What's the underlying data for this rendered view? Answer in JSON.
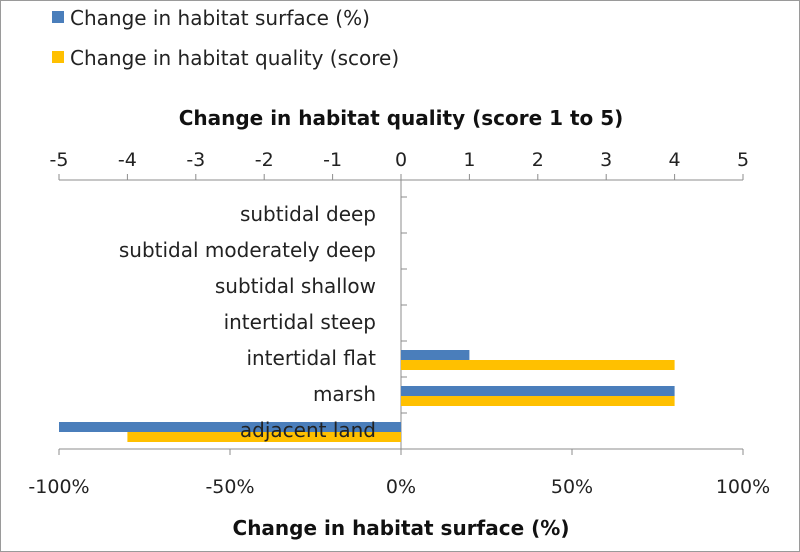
{
  "chart_data": {
    "type": "bar",
    "orientation": "horizontal",
    "categories": [
      "subtidal deep",
      "subtidal moderately deep",
      "subtidal shallow",
      "intertidal steep",
      "intertidal flat",
      "marsh",
      "adjacent land"
    ],
    "series": [
      {
        "name": "Change in habitat surface (%)",
        "axis": "bottom",
        "color": "#4a7ebb",
        "values": [
          0,
          0,
          0,
          0,
          20,
          80,
          -100
        ]
      },
      {
        "name": "Change in habitat quality (score)",
        "axis": "top",
        "color": "#ffc000",
        "values": [
          0,
          0,
          0,
          0,
          4,
          4,
          -4
        ]
      }
    ],
    "top_axis": {
      "label": "Change in habitat quality (score 1 to 5)",
      "range": [
        -5,
        5
      ],
      "ticks": [
        "-5",
        "-4",
        "-3",
        "-2",
        "-1",
        "0",
        "1",
        "2",
        "3",
        "4",
        "5"
      ]
    },
    "bottom_axis": {
      "label": "Change in habitat surface (%)",
      "range": [
        -100,
        100
      ],
      "ticks": [
        "-100%",
        "-50%",
        "0%",
        "50%",
        "100%"
      ]
    },
    "legend_position": "top-left",
    "grid": false
  }
}
